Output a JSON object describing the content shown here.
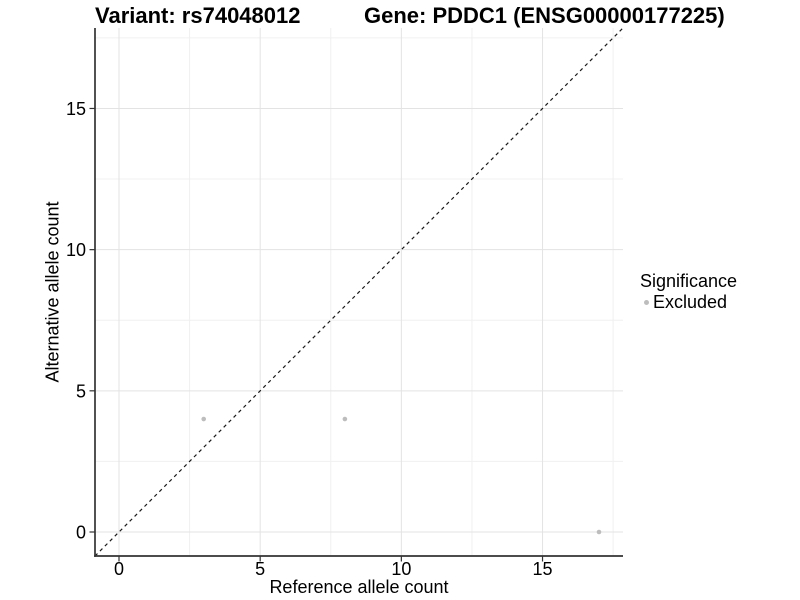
{
  "titles": {
    "variant": "Variant: rs74048012",
    "gene": "Gene: PDDC1 (ENSG00000177225)"
  },
  "chart_data": {
    "type": "scatter",
    "xlabel": "Reference allele count",
    "ylabel": "Alternative allele count",
    "points": [
      {
        "x": 3,
        "y": 4
      },
      {
        "x": 8,
        "y": 4
      },
      {
        "x": 17,
        "y": 0
      }
    ],
    "series": [
      {
        "name": "Excluded",
        "points_idx": [
          0,
          1,
          2
        ]
      }
    ],
    "xticks": [
      0,
      5,
      10,
      15
    ],
    "yticks": [
      0,
      5,
      10,
      15
    ],
    "xminor": [
      2.5,
      7.5,
      12.5,
      17.5
    ],
    "yminor": [
      2.5,
      7.5,
      12.5,
      17.5
    ],
    "xlim": [
      -0.85,
      17.85
    ],
    "ylim": [
      -0.85,
      17.85
    ],
    "grid": {
      "major_color": "#e3e3e3",
      "minor_color": "#f0f0f0",
      "visible": true
    },
    "identity_line": {
      "slope": 1,
      "intercept": 0,
      "style": "dashed",
      "color": "#1a1a1a"
    },
    "point_color": "#bdbdbd",
    "axis_color": "#333333",
    "legend": {
      "title": "Significance",
      "position": "right",
      "items": [
        {
          "label": "Excluded",
          "color": "#bdbdbd"
        }
      ]
    }
  }
}
